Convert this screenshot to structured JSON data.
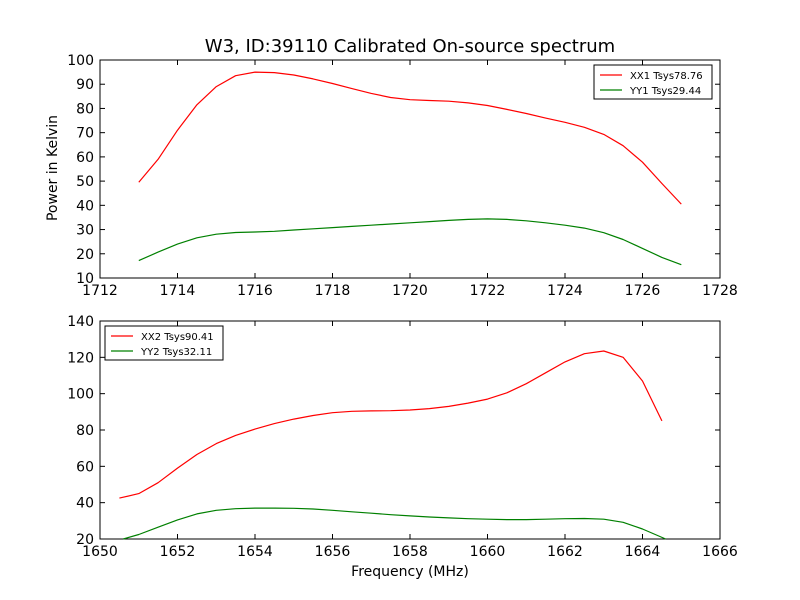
{
  "figure": {
    "title": "W3, ID:39110 Calibrated On-source spectrum",
    "ylabel": "Power in Kelvin",
    "xlabel": "Frequency (MHz)"
  },
  "chart_data": [
    {
      "type": "line",
      "title": "W3, ID:39110 Calibrated On-source spectrum",
      "xlabel": "",
      "ylabel": "Power in Kelvin",
      "xlim": [
        1712,
        1728
      ],
      "ylim": [
        10,
        100
      ],
      "xticks": [
        "1712",
        "1714",
        "1716",
        "1718",
        "1720",
        "1722",
        "1724",
        "1726",
        "1728"
      ],
      "yticks": [
        "10",
        "20",
        "30",
        "40",
        "50",
        "60",
        "70",
        "80",
        "90",
        "100"
      ],
      "grid": false,
      "legend_position": "top-right",
      "series": [
        {
          "name": "XX1 Tsys78.76",
          "color": "#ff0000",
          "points": [
            [
              1713.0,
              49.5
            ],
            [
              1713.5,
              59
            ],
            [
              1714.0,
              71
            ],
            [
              1714.5,
              81.5
            ],
            [
              1715.0,
              89
            ],
            [
              1715.5,
              93.5
            ],
            [
              1716.0,
              95
            ],
            [
              1716.5,
              94.8
            ],
            [
              1717.0,
              93.8
            ],
            [
              1717.5,
              92.2
            ],
            [
              1718.0,
              90.3
            ],
            [
              1718.5,
              88.2
            ],
            [
              1719.0,
              86.2
            ],
            [
              1719.5,
              84.5
            ],
            [
              1720.0,
              83.6
            ],
            [
              1720.5,
              83.3
            ],
            [
              1721.0,
              83.0
            ],
            [
              1721.5,
              82.3
            ],
            [
              1722.0,
              81.2
            ],
            [
              1722.5,
              79.6
            ],
            [
              1723.0,
              77.9
            ],
            [
              1723.5,
              76.0
            ],
            [
              1724.0,
              74.3
            ],
            [
              1724.5,
              72.2
            ],
            [
              1725.0,
              69.3
            ],
            [
              1725.5,
              64.6
            ],
            [
              1726.0,
              57.8
            ],
            [
              1726.5,
              49
            ],
            [
              1727.0,
              40.5
            ]
          ]
        },
        {
          "name": "YY1 Tsys29.44",
          "color": "#008000",
          "points": [
            [
              1713.0,
              17.2
            ],
            [
              1713.5,
              20.7
            ],
            [
              1714.0,
              24.0
            ],
            [
              1714.5,
              26.6
            ],
            [
              1715.0,
              28.1
            ],
            [
              1715.5,
              28.8
            ],
            [
              1716.0,
              29.0
            ],
            [
              1716.5,
              29.3
            ],
            [
              1717.0,
              29.8
            ],
            [
              1717.5,
              30.3
            ],
            [
              1718.0,
              30.8
            ],
            [
              1718.5,
              31.3
            ],
            [
              1719.0,
              31.8
            ],
            [
              1719.5,
              32.3
            ],
            [
              1720.0,
              32.8
            ],
            [
              1720.5,
              33.3
            ],
            [
              1721.0,
              33.8
            ],
            [
              1721.5,
              34.2
            ],
            [
              1722.0,
              34.4
            ],
            [
              1722.5,
              34.2
            ],
            [
              1723.0,
              33.6
            ],
            [
              1723.5,
              32.8
            ],
            [
              1724.0,
              31.8
            ],
            [
              1724.5,
              30.6
            ],
            [
              1725.0,
              28.7
            ],
            [
              1725.5,
              25.9
            ],
            [
              1726.0,
              22.2
            ],
            [
              1726.5,
              18.5
            ],
            [
              1727.0,
              15.5
            ]
          ]
        }
      ]
    },
    {
      "type": "line",
      "title": "",
      "xlabel": "Frequency (MHz)",
      "ylabel": "",
      "xlim": [
        1650,
        1666
      ],
      "ylim": [
        20,
        140
      ],
      "xticks": [
        "1650",
        "1652",
        "1654",
        "1656",
        "1658",
        "1660",
        "1662",
        "1664",
        "1666"
      ],
      "yticks": [
        "20",
        "40",
        "60",
        "80",
        "100",
        "120",
        "140"
      ],
      "grid": false,
      "legend_position": "top-left",
      "series": [
        {
          "name": "XX2 Tsys90.41",
          "color": "#ff0000",
          "points": [
            [
              1650.5,
              42.5
            ],
            [
              1651.0,
              45
            ],
            [
              1651.5,
              51
            ],
            [
              1652.0,
              59
            ],
            [
              1652.5,
              66.5
            ],
            [
              1653.0,
              72.5
            ],
            [
              1653.5,
              77
            ],
            [
              1654.0,
              80.5
            ],
            [
              1654.5,
              83.5
            ],
            [
              1655.0,
              86
            ],
            [
              1655.5,
              88
            ],
            [
              1656.0,
              89.5
            ],
            [
              1656.5,
              90.3
            ],
            [
              1657.0,
              90.5
            ],
            [
              1657.5,
              90.6
            ],
            [
              1658.0,
              91.0
            ],
            [
              1658.5,
              91.8
            ],
            [
              1659.0,
              93.0
            ],
            [
              1659.5,
              94.8
            ],
            [
              1660.0,
              97
            ],
            [
              1660.5,
              100.5
            ],
            [
              1661.0,
              105.5
            ],
            [
              1661.5,
              111.5
            ],
            [
              1662.0,
              117.5
            ],
            [
              1662.5,
              122
            ],
            [
              1663.0,
              123.5
            ],
            [
              1663.5,
              120
            ],
            [
              1664.0,
              107
            ],
            [
              1664.5,
              85
            ]
          ]
        },
        {
          "name": "YY2 Tsys32.11",
          "color": "#008000",
          "points": [
            [
              1650.6,
              20.0
            ],
            [
              1651.0,
              22.5
            ],
            [
              1651.5,
              26.5
            ],
            [
              1652.0,
              30.5
            ],
            [
              1652.5,
              33.8
            ],
            [
              1653.0,
              35.8
            ],
            [
              1653.5,
              36.7
            ],
            [
              1654.0,
              37.0
            ],
            [
              1654.5,
              37.0
            ],
            [
              1655.0,
              36.9
            ],
            [
              1655.5,
              36.5
            ],
            [
              1656.0,
              35.8
            ],
            [
              1656.5,
              35.0
            ],
            [
              1657.0,
              34.2
            ],
            [
              1657.5,
              33.4
            ],
            [
              1658.0,
              32.7
            ],
            [
              1658.5,
              32.1
            ],
            [
              1659.0,
              31.6
            ],
            [
              1659.5,
              31.2
            ],
            [
              1660.0,
              30.9
            ],
            [
              1660.5,
              30.7
            ],
            [
              1661.0,
              30.7
            ],
            [
              1661.5,
              30.9
            ],
            [
              1662.0,
              31.2
            ],
            [
              1662.5,
              31.3
            ],
            [
              1663.0,
              30.9
            ],
            [
              1663.5,
              29.2
            ],
            [
              1664.0,
              25.5
            ],
            [
              1664.6,
              20.0
            ]
          ]
        }
      ]
    }
  ]
}
